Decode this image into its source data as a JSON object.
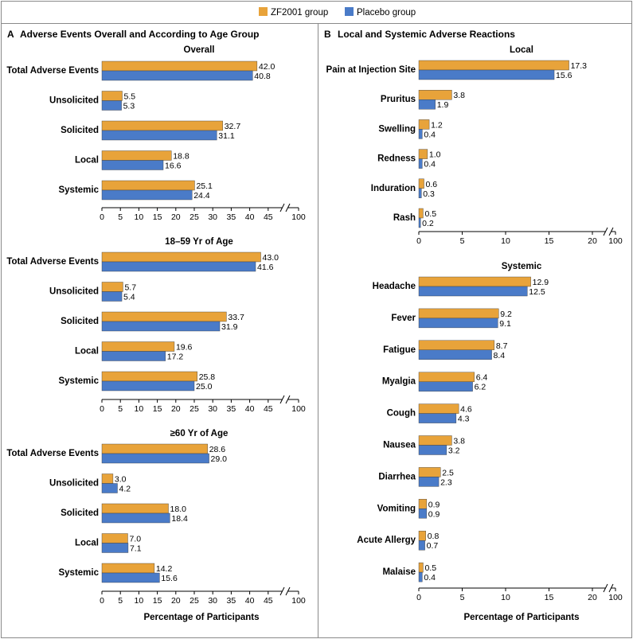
{
  "legend": {
    "zf_label": "ZF2001 group",
    "placebo_label": "Placebo group"
  },
  "colors": {
    "zf": "#E8A33A",
    "placebo": "#4A7BC8"
  },
  "panels": {
    "A": {
      "letter": "A",
      "title": "Adverse Events Overall and According to Age Group",
      "xlabel": "Percentage of Participants"
    },
    "B": {
      "letter": "B",
      "title": "Local and Systemic Adverse Reactions",
      "xlabel": "Percentage of Participants"
    }
  },
  "chart_data": [
    {
      "type": "bar",
      "orientation": "horizontal",
      "panel": "A",
      "title": "Overall",
      "categories": [
        "Total Adverse Events",
        "Unsolicited",
        "Solicited",
        "Local",
        "Systemic"
      ],
      "series": [
        {
          "name": "ZF2001 group",
          "values": [
            42.0,
            5.5,
            32.7,
            18.8,
            25.1
          ]
        },
        {
          "name": "Placebo group",
          "values": [
            40.8,
            5.3,
            31.1,
            16.6,
            24.4
          ]
        }
      ],
      "xticks": [
        "0",
        "5",
        "10",
        "15",
        "20",
        "25",
        "30",
        "35",
        "40",
        "45",
        "100"
      ],
      "xlim": [
        0,
        100
      ],
      "axis_break": [
        47,
        100
      ],
      "xlabel": ""
    },
    {
      "type": "bar",
      "orientation": "horizontal",
      "panel": "A",
      "title": "18–59 Yr of Age",
      "categories": [
        "Total Adverse Events",
        "Unsolicited",
        "Solicited",
        "Local",
        "Systemic"
      ],
      "series": [
        {
          "name": "ZF2001 group",
          "values": [
            43.0,
            5.7,
            33.7,
            19.6,
            25.8
          ]
        },
        {
          "name": "Placebo group",
          "values": [
            41.6,
            5.4,
            31.9,
            17.2,
            25.0
          ]
        }
      ],
      "xticks": [
        "0",
        "5",
        "10",
        "15",
        "20",
        "25",
        "30",
        "35",
        "40",
        "45",
        "100"
      ],
      "xlim": [
        0,
        100
      ],
      "axis_break": [
        47,
        100
      ],
      "xlabel": ""
    },
    {
      "type": "bar",
      "orientation": "horizontal",
      "panel": "A",
      "title": "≥60 Yr of Age",
      "categories": [
        "Total Adverse Events",
        "Unsolicited",
        "Solicited",
        "Local",
        "Systemic"
      ],
      "series": [
        {
          "name": "ZF2001 group",
          "values": [
            28.6,
            3.0,
            18.0,
            7.0,
            14.2
          ]
        },
        {
          "name": "Placebo group",
          "values": [
            29.0,
            4.2,
            18.4,
            7.1,
            15.6
          ]
        }
      ],
      "xticks": [
        "0",
        "5",
        "10",
        "15",
        "20",
        "25",
        "30",
        "35",
        "40",
        "45",
        "100"
      ],
      "xlim": [
        0,
        100
      ],
      "axis_break": [
        47,
        100
      ],
      "xlabel": "Percentage of Participants"
    },
    {
      "type": "bar",
      "orientation": "horizontal",
      "panel": "B",
      "title": "Local",
      "categories": [
        "Pain at Injection Site",
        "Pruritus",
        "Swelling",
        "Redness",
        "Induration",
        "Rash"
      ],
      "series": [
        {
          "name": "ZF2001 group",
          "values": [
            17.3,
            3.8,
            1.2,
            1.0,
            0.6,
            0.5
          ]
        },
        {
          "name": "Placebo group",
          "values": [
            15.6,
            1.9,
            0.4,
            0.4,
            0.3,
            0.2
          ]
        }
      ],
      "xticks": [
        "0",
        "5",
        "10",
        "15",
        "20",
        "100"
      ],
      "xlim": [
        0,
        100
      ],
      "axis_break": [
        21,
        100
      ],
      "xlabel": ""
    },
    {
      "type": "bar",
      "orientation": "horizontal",
      "panel": "B",
      "title": "Systemic",
      "categories": [
        "Headache",
        "Fever",
        "Fatigue",
        "Myalgia",
        "Cough",
        "Nausea",
        "Diarrhea",
        "Vomiting",
        "Acute Allergy",
        "Malaise"
      ],
      "series": [
        {
          "name": "ZF2001 group",
          "values": [
            12.9,
            9.2,
            8.7,
            6.4,
            4.6,
            3.8,
            2.5,
            0.9,
            0.8,
            0.5
          ]
        },
        {
          "name": "Placebo group",
          "values": [
            12.5,
            9.1,
            8.4,
            6.2,
            4.3,
            3.2,
            2.3,
            0.9,
            0.7,
            0.4
          ]
        }
      ],
      "xticks": [
        "0",
        "5",
        "10",
        "15",
        "20",
        "100"
      ],
      "xlim": [
        0,
        100
      ],
      "axis_break": [
        21,
        100
      ],
      "xlabel": "Percentage of Participants"
    }
  ]
}
